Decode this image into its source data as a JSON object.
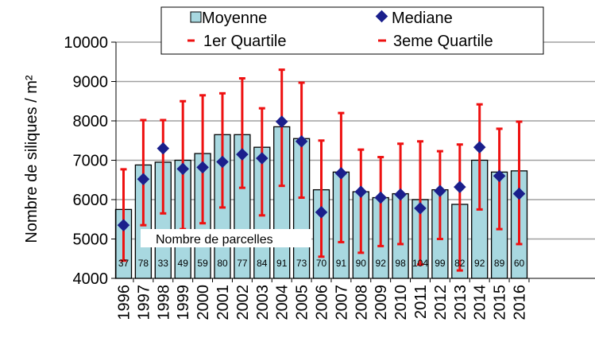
{
  "chart_data": {
    "type": "bar",
    "ylabel": "Nombre de siliques / m²",
    "ylim": [
      4000,
      10000
    ],
    "yticks": [
      4000,
      5000,
      6000,
      7000,
      8000,
      9000,
      10000
    ],
    "grid": true,
    "legend_placement": "top",
    "annotation": "Nombre de parcelles",
    "categories": [
      "1996",
      "1997",
      "1998",
      "1999",
      "2000",
      "2001",
      "2002",
      "2003",
      "2004",
      "2005",
      "2006",
      "2007",
      "2008",
      "2009",
      "2010",
      "2011",
      "2012",
      "2013",
      "2014",
      "2015",
      "2016"
    ],
    "series": [
      {
        "name": "Moyenne",
        "values": [
          5750,
          6880,
          6950,
          7000,
          7170,
          7650,
          7650,
          7330,
          7850,
          7550,
          6250,
          6700,
          6200,
          6050,
          6150,
          6000,
          6250,
          5880,
          7000,
          6700,
          6730
        ]
      },
      {
        "name": "Mediane",
        "values": [
          5350,
          6520,
          7300,
          6780,
          6820,
          6960,
          7150,
          7050,
          7980,
          7480,
          5680,
          6670,
          6200,
          6050,
          6130,
          5780,
          6220,
          6320,
          7330,
          6600,
          6150
        ]
      },
      {
        "name": "1er Quartile",
        "values": [
          4450,
          5350,
          5650,
          5250,
          5400,
          5800,
          6300,
          5600,
          6350,
          6050,
          4550,
          4920,
          4650,
          4820,
          4870,
          4350,
          5000,
          4200,
          5750,
          5250,
          4870
        ]
      },
      {
        "name": "3eme Quartile",
        "values": [
          6770,
          8020,
          8020,
          8500,
          8650,
          8700,
          9080,
          8320,
          9300,
          8970,
          7500,
          8200,
          7270,
          7080,
          7420,
          7480,
          7230,
          7400,
          8420,
          7800,
          7980
        ]
      }
    ],
    "counts": [
      "37",
      "78",
      "33",
      "49",
      "59",
      "80",
      "77",
      "84",
      "91",
      "73",
      "70",
      "91",
      "90",
      "92",
      "98",
      "104",
      "99",
      "82",
      "92",
      "89",
      "60"
    ]
  },
  "colors": {
    "bar_fill": "#a8d8e0",
    "bar_stroke": "#000000",
    "median": "#1a1f8c",
    "quartile": "#ee1111",
    "grid": "#a0a0a0"
  }
}
